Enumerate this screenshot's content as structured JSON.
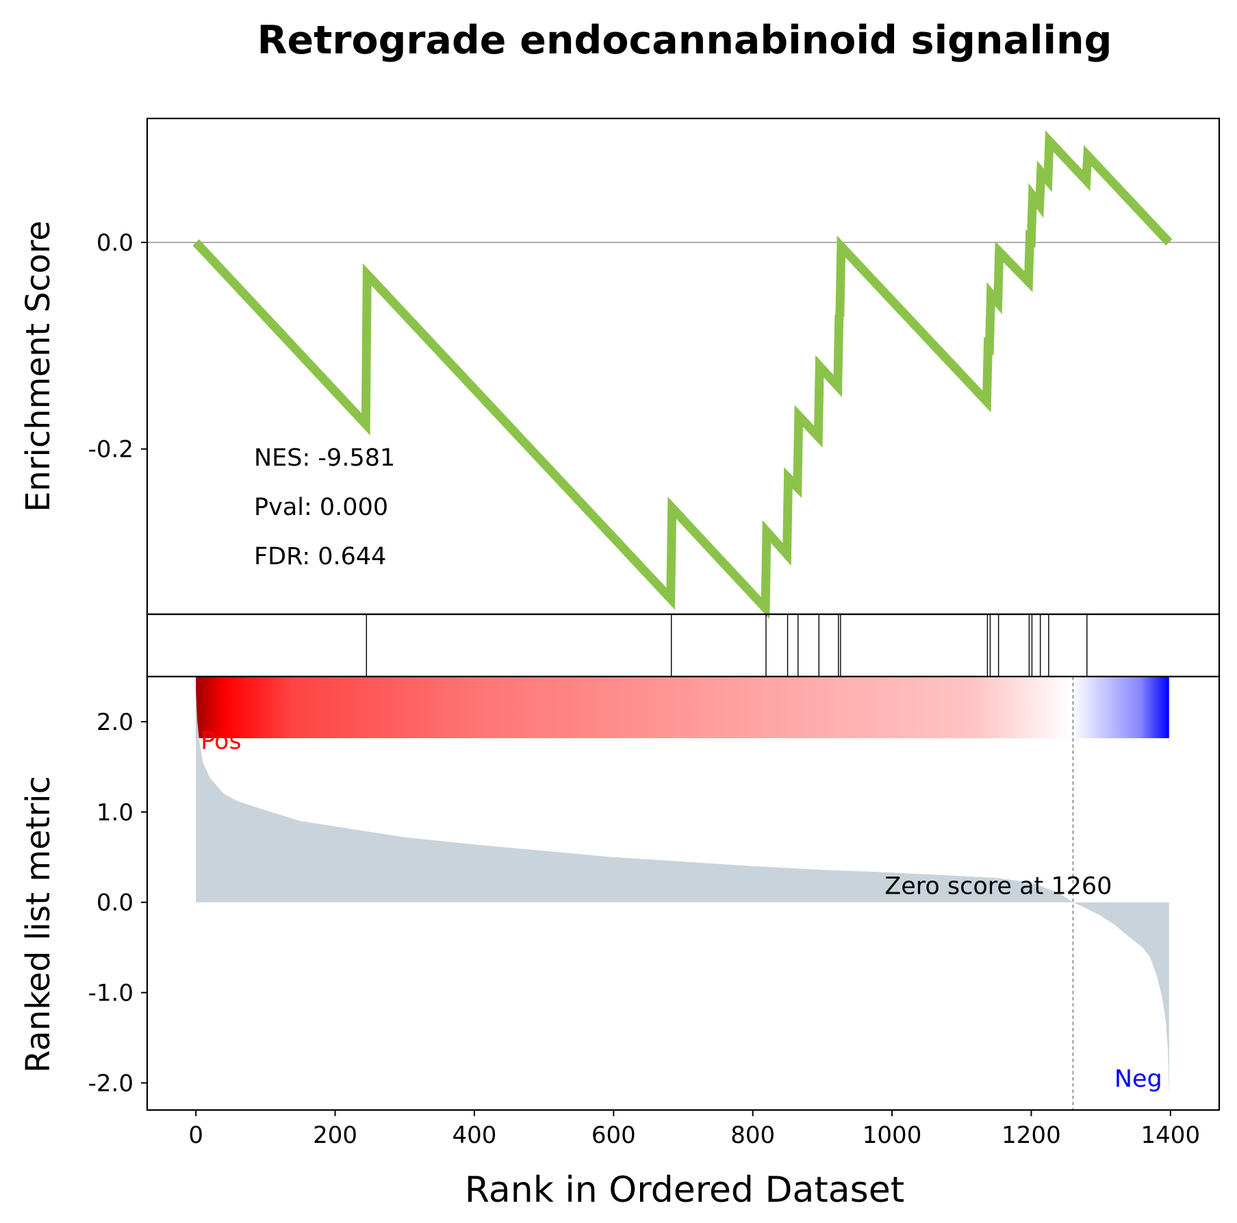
{
  "chart_data": [
    {
      "panel": "enrichment",
      "type": "line",
      "title": "Retrograde endocannabinoid signaling",
      "ylabel": "Enrichment Score",
      "ylim": [
        -0.36,
        0.12
      ],
      "xlim": [
        -70,
        1470
      ],
      "yticks": [
        0.0,
        -0.2
      ],
      "ytick_labels": [
        "0.0",
        "-0.2"
      ],
      "line_color": "#8bc34a",
      "stats": [
        "NES: -9.581",
        "Pval: 0.000",
        "FDR: 0.644"
      ],
      "points": [
        [
          0,
          0.0
        ],
        [
          244,
          -0.176
        ],
        [
          246,
          -0.031
        ],
        [
          682,
          -0.345
        ],
        [
          684,
          -0.257
        ],
        [
          818,
          -0.354
        ],
        [
          820,
          -0.28
        ],
        [
          849,
          -0.302
        ],
        [
          851,
          -0.228
        ],
        [
          864,
          -0.237
        ],
        [
          866,
          -0.168
        ],
        [
          894,
          -0.188
        ],
        [
          896,
          -0.12
        ],
        [
          922,
          -0.139
        ],
        [
          924,
          -0.07
        ],
        [
          925,
          -0.072
        ],
        [
          927,
          -0.004
        ],
        [
          1136,
          -0.154
        ],
        [
          1138,
          -0.1
        ],
        [
          1140,
          -0.101
        ],
        [
          1142,
          -0.05
        ],
        [
          1152,
          -0.058
        ],
        [
          1154,
          -0.009
        ],
        [
          1196,
          -0.038
        ],
        [
          1198,
          0.004
        ],
        [
          1200,
          0.003
        ],
        [
          1202,
          0.045
        ],
        [
          1212,
          0.036
        ],
        [
          1214,
          0.068
        ],
        [
          1224,
          0.06
        ],
        [
          1226,
          0.098
        ],
        [
          1279,
          0.06
        ],
        [
          1281,
          0.084
        ],
        [
          1398,
          0.0
        ]
      ]
    },
    {
      "panel": "hits",
      "type": "scatter",
      "x": [
        245,
        683,
        819,
        850,
        865,
        895,
        923,
        926,
        1137,
        1141,
        1153,
        1197,
        1201,
        1213,
        1225,
        1280
      ]
    },
    {
      "panel": "ranked_metric",
      "type": "area",
      "ylabel": "Ranked list metric",
      "xlabel": "Rank in Ordered Dataset",
      "xlim": [
        -70,
        1470
      ],
      "ylim": [
        -2.3,
        2.5
      ],
      "xticks": [
        0,
        200,
        400,
        600,
        800,
        1000,
        1200,
        1400
      ],
      "xtick_labels": [
        "0",
        "200",
        "400",
        "600",
        "800",
        "1000",
        "1200",
        "1400"
      ],
      "yticks": [
        2.0,
        1.0,
        0.0,
        -1.0,
        -2.0
      ],
      "ytick_labels": [
        "2.0",
        "1.0",
        "0.0",
        "-1.0",
        "-2.0"
      ],
      "fill_color": "#c9d3dc",
      "pos_label": "Pos",
      "neg_label": "Neg",
      "pos_color": "#ff0000",
      "neg_color": "#0000ff",
      "zero_score_rank": 1260,
      "zero_score_label": "Zero score at 1260",
      "curve": [
        [
          0,
          2.35
        ],
        [
          2,
          2.0
        ],
        [
          5,
          1.78
        ],
        [
          10,
          1.55
        ],
        [
          20,
          1.38
        ],
        [
          40,
          1.2
        ],
        [
          60,
          1.12
        ],
        [
          80,
          1.07
        ],
        [
          100,
          1.02
        ],
        [
          150,
          0.9
        ],
        [
          200,
          0.84
        ],
        [
          300,
          0.72
        ],
        [
          400,
          0.64
        ],
        [
          500,
          0.57
        ],
        [
          600,
          0.5
        ],
        [
          700,
          0.45
        ],
        [
          800,
          0.4
        ],
        [
          900,
          0.36
        ],
        [
          1000,
          0.33
        ],
        [
          1100,
          0.29
        ],
        [
          1150,
          0.27
        ],
        [
          1200,
          0.22
        ],
        [
          1240,
          0.1
        ],
        [
          1260,
          0.0
        ],
        [
          1280,
          -0.07
        ],
        [
          1300,
          -0.15
        ],
        [
          1320,
          -0.25
        ],
        [
          1340,
          -0.38
        ],
        [
          1360,
          -0.5
        ],
        [
          1370,
          -0.6
        ],
        [
          1380,
          -0.8
        ],
        [
          1388,
          -1.05
        ],
        [
          1393,
          -1.3
        ],
        [
          1396,
          -1.6
        ],
        [
          1398,
          -2.15
        ]
      ]
    }
  ],
  "colorbar": {
    "stops": [
      [
        0.0,
        "#a00000"
      ],
      [
        0.03,
        "#ff0000"
      ],
      [
        0.1,
        "#ff4444"
      ],
      [
        0.3,
        "#ff7777"
      ],
      [
        0.55,
        "#ffa0a0"
      ],
      [
        0.8,
        "#ffc4c4"
      ],
      [
        0.9,
        "#ffffff"
      ],
      [
        0.97,
        "#8888ff"
      ],
      [
        1.0,
        "#0000ff"
      ]
    ]
  }
}
